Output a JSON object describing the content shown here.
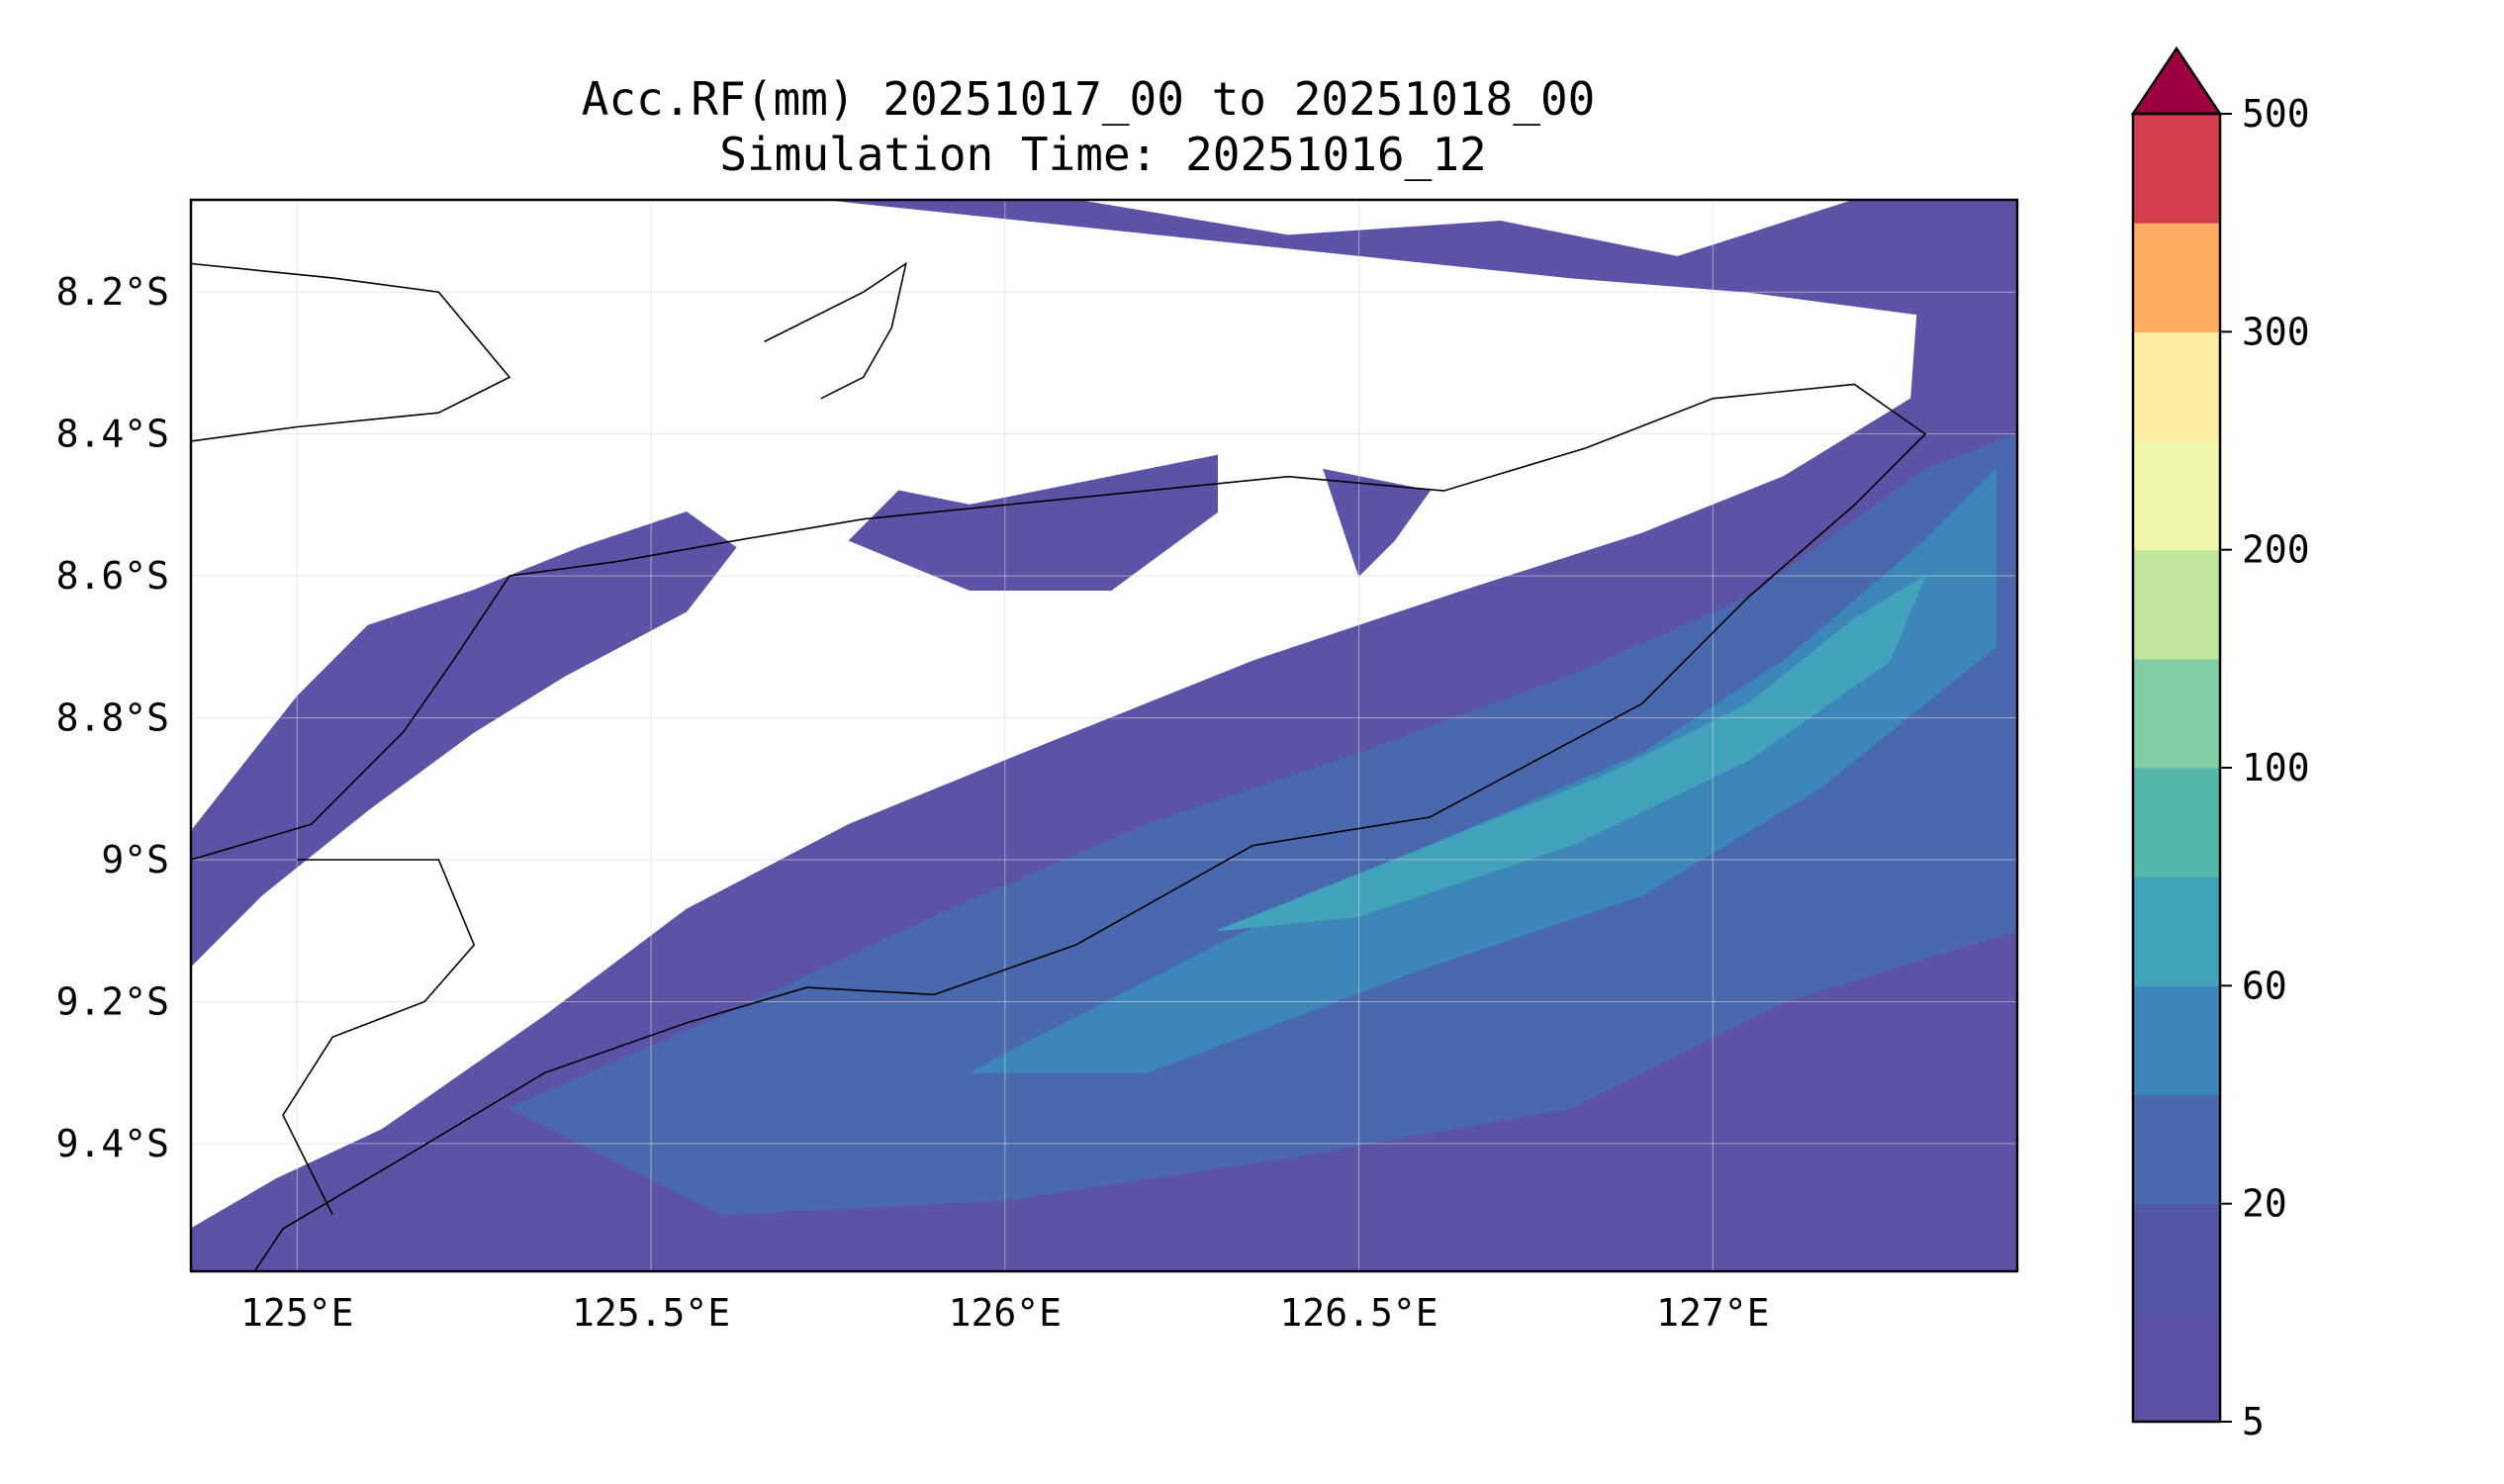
{
  "chart_data": {
    "type": "filled-contour-map",
    "title": "Acc.RF(mm) 20251017_00 to 20251018_00",
    "subtitle": "Simulation Time: 20251016_12",
    "x_axis": {
      "ticks": [
        125.0,
        125.5,
        126.0,
        126.5,
        127.0
      ],
      "tick_labels": [
        "125°E",
        "125.5°E",
        "126°E",
        "126.5°E",
        "127°E"
      ],
      "range": [
        124.85,
        127.43
      ]
    },
    "y_axis": {
      "ticks": [
        -8.2,
        -8.4,
        -8.6,
        -8.8,
        -9.0,
        -9.2,
        -9.4
      ],
      "tick_labels": [
        "8.2°S",
        "8.4°S",
        "8.6°S",
        "8.8°S",
        "9°S",
        "9.2°S",
        "9.4°S"
      ],
      "range": [
        -9.58,
        -8.07
      ]
    },
    "grid": true,
    "colorbar": {
      "levels": [
        5,
        10,
        20,
        40,
        60,
        80,
        100,
        150,
        200,
        250,
        300,
        400,
        500
      ],
      "tick_labels": [
        "5",
        "20",
        "60",
        "100",
        "200",
        "300",
        "500"
      ],
      "colors": [
        "#5c52a6",
        "#5457a5",
        "#4a68ad",
        "#3c86ba",
        "#41a2ba",
        "#55b7a9",
        "#82cda4",
        "#c1e49f",
        "#eef7aa",
        "#fdeda2",
        "#fdad63",
        "#d53e4f"
      ],
      "extend_color": "#9e0142",
      "extend": "max"
    },
    "rainfall_regions": [
      {
        "level_mm": 5,
        "color": "#5c52a6",
        "lonlat": [
          [
            124.85,
            -9.52
          ],
          [
            124.97,
            -9.45
          ],
          [
            125.12,
            -9.38
          ],
          [
            125.35,
            -9.22
          ],
          [
            125.55,
            -9.07
          ],
          [
            125.78,
            -8.95
          ],
          [
            126.05,
            -8.84
          ],
          [
            126.35,
            -8.72
          ],
          [
            126.65,
            -8.62
          ],
          [
            126.9,
            -8.54
          ],
          [
            127.1,
            -8.46
          ],
          [
            127.28,
            -8.35
          ],
          [
            127.3,
            -8.07
          ],
          [
            127.43,
            -8.07
          ],
          [
            127.43,
            -9.58
          ],
          [
            124.85,
            -9.58
          ]
        ]
      },
      {
        "level_mm": 5,
        "color": "#5c52a6",
        "lonlat": [
          [
            124.85,
            -9.15
          ],
          [
            124.95,
            -9.05
          ],
          [
            125.1,
            -8.93
          ],
          [
            125.25,
            -8.82
          ],
          [
            125.38,
            -8.74
          ],
          [
            125.55,
            -8.65
          ],
          [
            125.62,
            -8.56
          ],
          [
            125.55,
            -8.51
          ],
          [
            125.4,
            -8.56
          ],
          [
            125.25,
            -8.62
          ],
          [
            125.1,
            -8.67
          ],
          [
            125.0,
            -8.77
          ],
          [
            124.85,
            -8.96
          ]
        ]
      },
      {
        "level_mm": 5,
        "color": "#5c52a6",
        "lonlat": [
          [
            125.78,
            -8.55
          ],
          [
            125.95,
            -8.62
          ],
          [
            126.15,
            -8.62
          ],
          [
            126.3,
            -8.51
          ],
          [
            126.3,
            -8.43
          ],
          [
            126.15,
            -8.46
          ],
          [
            125.95,
            -8.5
          ],
          [
            125.85,
            -8.48
          ]
        ]
      },
      {
        "level_mm": 5,
        "color": "#5c52a6",
        "lonlat": [
          [
            126.45,
            -8.45
          ],
          [
            126.6,
            -8.48
          ],
          [
            126.55,
            -8.55
          ],
          [
            126.5,
            -8.6
          ]
        ]
      },
      {
        "level_mm": 5,
        "color": "#5c52a6",
        "lonlat": [
          [
            125.75,
            -8.07
          ],
          [
            126.1,
            -8.07
          ],
          [
            126.4,
            -8.12
          ],
          [
            126.7,
            -8.1
          ],
          [
            126.95,
            -8.15
          ],
          [
            127.2,
            -8.07
          ],
          [
            127.43,
            -8.07
          ],
          [
            127.43,
            -8.25
          ],
          [
            127.05,
            -8.2
          ],
          [
            126.8,
            -8.18
          ]
        ]
      },
      {
        "level_mm": 20,
        "color": "#4a68ad",
        "lonlat": [
          [
            125.3,
            -9.35
          ],
          [
            125.6,
            -9.22
          ],
          [
            125.9,
            -9.08
          ],
          [
            126.2,
            -8.95
          ],
          [
            126.5,
            -8.85
          ],
          [
            126.8,
            -8.74
          ],
          [
            127.05,
            -8.63
          ],
          [
            127.3,
            -8.45
          ],
          [
            127.43,
            -8.4
          ],
          [
            127.43,
            -9.1
          ],
          [
            127.1,
            -9.2
          ],
          [
            126.8,
            -9.35
          ],
          [
            126.4,
            -9.42
          ],
          [
            126.0,
            -9.48
          ],
          [
            125.6,
            -9.5
          ]
        ]
      },
      {
        "level_mm": 40,
        "color": "#3c86ba",
        "lonlat": [
          [
            125.95,
            -9.3
          ],
          [
            126.3,
            -9.12
          ],
          [
            126.6,
            -8.98
          ],
          [
            126.9,
            -8.85
          ],
          [
            127.1,
            -8.72
          ],
          [
            127.3,
            -8.55
          ],
          [
            127.4,
            -8.45
          ],
          [
            127.4,
            -8.7
          ],
          [
            127.15,
            -8.9
          ],
          [
            126.9,
            -9.05
          ],
          [
            126.6,
            -9.15
          ],
          [
            126.2,
            -9.3
          ]
        ]
      },
      {
        "level_mm": 60,
        "color": "#41a2ba",
        "lonlat": [
          [
            126.3,
            -9.1
          ],
          [
            126.6,
            -8.98
          ],
          [
            126.85,
            -8.88
          ],
          [
            127.05,
            -8.78
          ],
          [
            127.2,
            -8.66
          ],
          [
            127.3,
            -8.6
          ],
          [
            127.25,
            -8.72
          ],
          [
            127.05,
            -8.86
          ],
          [
            126.8,
            -8.98
          ],
          [
            126.5,
            -9.08
          ]
        ]
      }
    ],
    "coastlines": [
      [
        [
          124.85,
          -8.16
        ],
        [
          125.05,
          -8.18
        ],
        [
          125.2,
          -8.2
        ],
        [
          125.3,
          -8.32
        ],
        [
          125.2,
          -8.37
        ],
        [
          125.0,
          -8.39
        ],
        [
          124.85,
          -8.41
        ]
      ],
      [
        [
          125.66,
          -8.27
        ],
        [
          125.8,
          -8.2
        ],
        [
          125.86,
          -8.16
        ],
        [
          125.84,
          -8.25
        ],
        [
          125.8,
          -8.32
        ],
        [
          125.74,
          -8.35
        ]
      ],
      [
        [
          124.85,
          -9.0
        ],
        [
          125.02,
          -8.95
        ],
        [
          125.15,
          -8.82
        ],
        [
          125.22,
          -8.72
        ],
        [
          125.3,
          -8.6
        ],
        [
          125.45,
          -8.58
        ],
        [
          125.62,
          -8.55
        ],
        [
          125.8,
          -8.52
        ],
        [
          126.0,
          -8.5
        ],
        [
          126.2,
          -8.48
        ],
        [
          126.4,
          -8.46
        ],
        [
          126.62,
          -8.48
        ],
        [
          126.82,
          -8.42
        ],
        [
          127.0,
          -8.35
        ],
        [
          127.2,
          -8.33
        ],
        [
          127.3,
          -8.4
        ],
        [
          127.2,
          -8.5
        ],
        [
          127.05,
          -8.63
        ],
        [
          126.9,
          -8.78
        ],
        [
          126.6,
          -8.94
        ],
        [
          126.35,
          -8.98
        ],
        [
          126.1,
          -9.12
        ],
        [
          125.9,
          -9.19
        ],
        [
          125.72,
          -9.18
        ],
        [
          125.55,
          -9.23
        ],
        [
          125.35,
          -9.3
        ],
        [
          125.15,
          -9.42
        ],
        [
          124.98,
          -9.52
        ],
        [
          124.94,
          -9.58
        ]
      ],
      [
        [
          125.0,
          -9.0
        ],
        [
          125.2,
          -9.0
        ],
        [
          125.25,
          -9.12
        ],
        [
          125.18,
          -9.2
        ],
        [
          125.05,
          -9.25
        ],
        [
          124.98,
          -9.36
        ],
        [
          125.05,
          -9.5
        ]
      ]
    ]
  }
}
